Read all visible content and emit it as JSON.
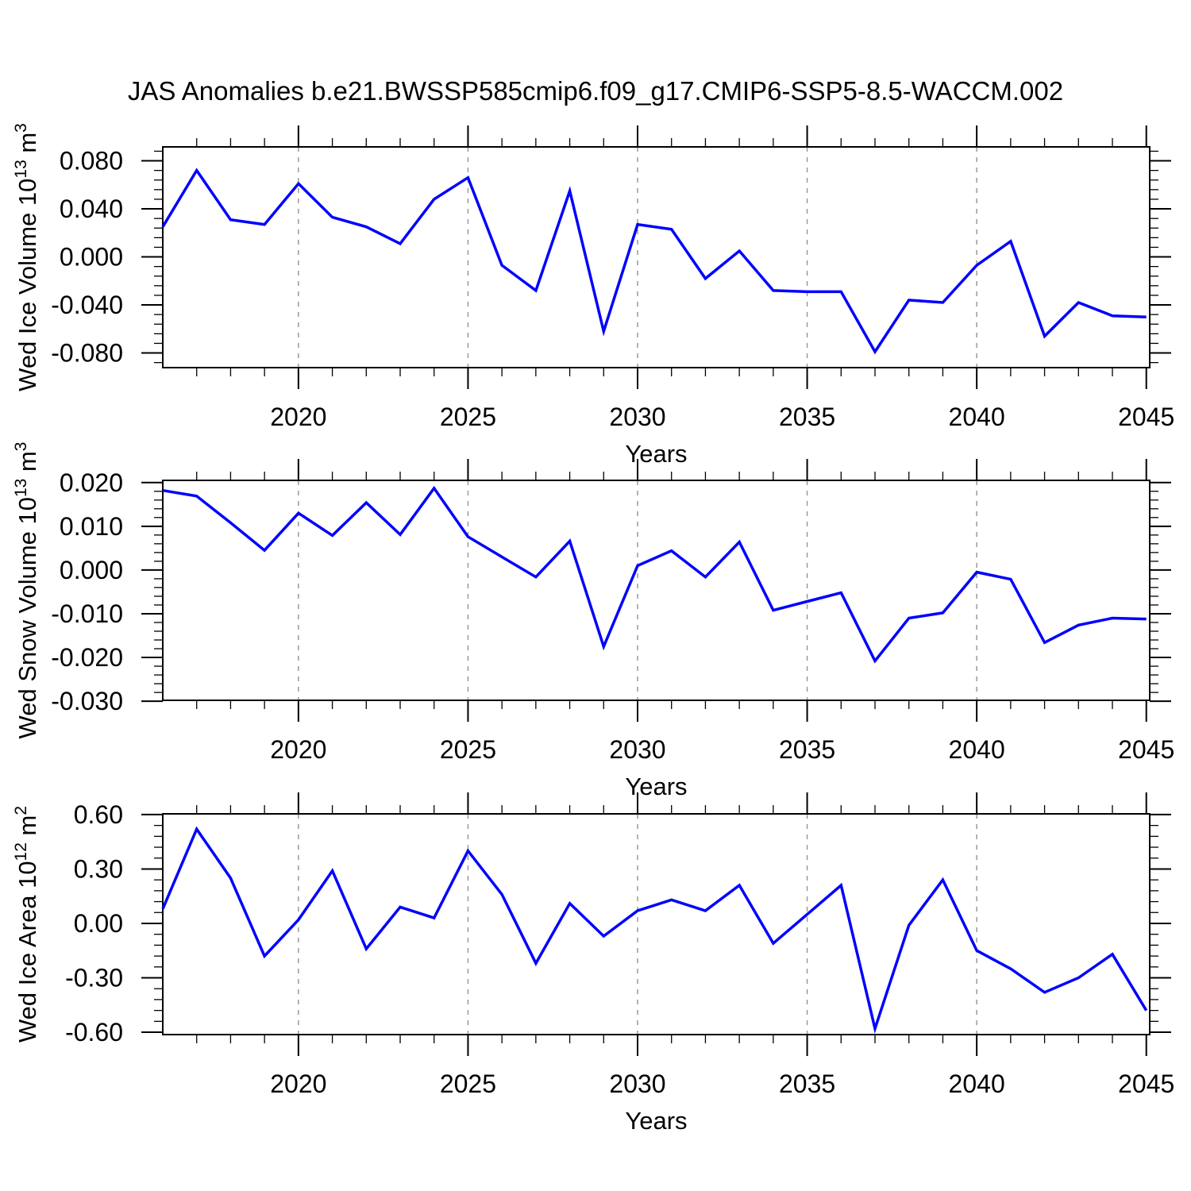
{
  "title": "JAS Anomalies b.e21.BWSSP585cmip6.f09_g17.CMIP6-SSP5-8.5-WACCM.002",
  "colors": {
    "line": "#0000ff",
    "grid": "#999999",
    "frame": "#000000"
  },
  "years": [
    2016,
    2017,
    2018,
    2019,
    2020,
    2021,
    2022,
    2023,
    2024,
    2025,
    2026,
    2027,
    2028,
    2029,
    2030,
    2031,
    2032,
    2033,
    2034,
    2035,
    2036,
    2037,
    2038,
    2039,
    2040,
    2041,
    2042,
    2043,
    2044,
    2045
  ],
  "x_axis": {
    "label": "Years",
    "xlim": [
      2016,
      2045.1
    ],
    "major_ticks": [
      2020,
      2025,
      2030,
      2035,
      2040,
      2045
    ],
    "major_tick_labels": [
      "2020",
      "2025",
      "2030",
      "2035",
      "2040",
      "2045"
    ],
    "minor_step": 1,
    "grid_years": [
      2020,
      2025,
      2030,
      2035,
      2040
    ]
  },
  "chart_data": [
    {
      "type": "line",
      "series_name": "Wed Ice Volume",
      "ylabel_plain": "Wed Ice Volume 10^13 m^3",
      "ylabel_parts": [
        {
          "t": "Wed Ice Volume 10"
        },
        {
          "t": "13",
          "sup": true
        },
        {
          "t": " m"
        },
        {
          "t": "3",
          "sup": true
        }
      ],
      "ylim": [
        -0.0922,
        0.0916
      ],
      "ytick_values": [
        0.08,
        0.04,
        0.0,
        -0.04,
        -0.08
      ],
      "ytick_labels": [
        "0.080",
        "0.040",
        "0.000",
        "-0.040",
        "-0.080"
      ],
      "y_minor_step": 0.008,
      "values": [
        0.025,
        0.072,
        0.031,
        0.027,
        0.061,
        0.033,
        0.025,
        0.011,
        0.048,
        0.066,
        -0.007,
        -0.028,
        0.055,
        -0.062,
        0.027,
        0.023,
        -0.018,
        0.005,
        -0.028,
        -0.029,
        -0.029,
        -0.079,
        -0.036,
        -0.038,
        -0.007,
        0.013,
        -0.066,
        -0.038,
        -0.049,
        -0.05
      ]
    },
    {
      "type": "line",
      "series_name": "Wed Snow Volume",
      "ylabel_plain": "Wed Snow Volume 10^13 m^3",
      "ylabel_parts": [
        {
          "t": "Wed Snow Volume 10"
        },
        {
          "t": "13",
          "sup": true
        },
        {
          "t": " m"
        },
        {
          "t": "3",
          "sup": true
        }
      ],
      "ylim": [
        -0.0298,
        0.0205
      ],
      "ytick_values": [
        0.02,
        0.01,
        0.0,
        -0.01,
        -0.02,
        -0.03
      ],
      "ytick_labels": [
        "0.020",
        "0.010",
        "0.000",
        "-0.010",
        "-0.020",
        "-0.030"
      ],
      "y_minor_step": 0.002,
      "values": [
        0.0182,
        0.0169,
        0.0108,
        0.0045,
        0.013,
        0.0079,
        0.0154,
        0.0081,
        0.0187,
        0.0076,
        0.003,
        -0.0016,
        0.0066,
        -0.0175,
        0.001,
        0.0044,
        -0.0016,
        0.0064,
        -0.0092,
        -0.0072,
        -0.0052,
        -0.0208,
        -0.011,
        -0.0098,
        -0.0005,
        -0.0021,
        -0.0166,
        -0.0126,
        -0.011,
        -0.0112
      ]
    },
    {
      "type": "line",
      "series_name": "Wed Ice Area",
      "ylabel_plain": "Wed Ice Area 10^12 m^2",
      "ylabel_parts": [
        {
          "t": "Wed Ice Area 10"
        },
        {
          "t": "12",
          "sup": true
        },
        {
          "t": " m"
        },
        {
          "t": "2",
          "sup": true
        }
      ],
      "ylim": [
        -0.613,
        0.604
      ],
      "ytick_values": [
        0.6,
        0.3,
        0.0,
        -0.3,
        -0.6
      ],
      "ytick_labels": [
        "0.60",
        "0.30",
        "0.00",
        "-0.30",
        "-0.60"
      ],
      "y_minor_step": 0.06,
      "values": [
        0.08,
        0.52,
        0.25,
        -0.18,
        0.02,
        0.29,
        -0.14,
        0.09,
        0.03,
        0.4,
        0.16,
        -0.22,
        0.11,
        -0.07,
        0.07,
        0.13,
        0.07,
        0.21,
        -0.11,
        0.05,
        0.21,
        -0.58,
        -0.01,
        0.24,
        -0.15,
        -0.25,
        -0.38,
        -0.3,
        -0.17,
        -0.48
      ]
    }
  ]
}
